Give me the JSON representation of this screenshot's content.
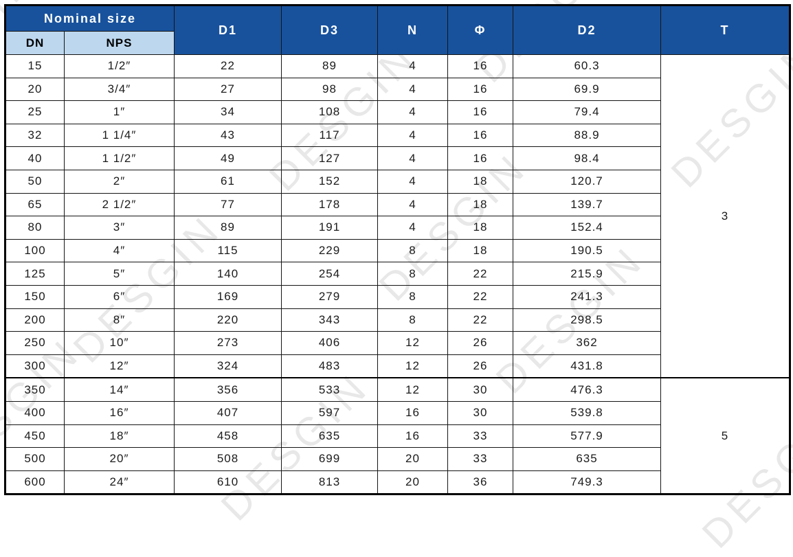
{
  "watermark": {
    "text": "DESGIN",
    "color": "#d9d9d9"
  },
  "table": {
    "header": {
      "nominal_size": "Nominal size",
      "dn": "DN",
      "nps": "NPS",
      "d1": "D1",
      "d3": "D3",
      "n": "N",
      "phi": "Φ",
      "d2": "D2",
      "t": "T"
    },
    "colors": {
      "header_bg": "#18529d",
      "header_fg": "#ffffff",
      "subheader_bg": "#bdd7ee",
      "subheader_fg": "#000000",
      "border": "#000000"
    },
    "rows": [
      {
        "dn": "15",
        "nps": "1/2″",
        "d1": "22",
        "d3": "89",
        "n": "4",
        "phi": "16",
        "d2": "60.3"
      },
      {
        "dn": "20",
        "nps": "3/4″",
        "d1": "27",
        "d3": "98",
        "n": "4",
        "phi": "16",
        "d2": "69.9"
      },
      {
        "dn": "25",
        "nps": "1″",
        "d1": "34",
        "d3": "108",
        "n": "4",
        "phi": "16",
        "d2": "79.4"
      },
      {
        "dn": "32",
        "nps": "1 1/4″",
        "d1": "43",
        "d3": "117",
        "n": "4",
        "phi": "16",
        "d2": "88.9"
      },
      {
        "dn": "40",
        "nps": "1 1/2″",
        "d1": "49",
        "d3": "127",
        "n": "4",
        "phi": "16",
        "d2": "98.4"
      },
      {
        "dn": "50",
        "nps": "2″",
        "d1": "61",
        "d3": "152",
        "n": "4",
        "phi": "18",
        "d2": "120.7"
      },
      {
        "dn": "65",
        "nps": "2 1/2″",
        "d1": "77",
        "d3": "178",
        "n": "4",
        "phi": "18",
        "d2": "139.7"
      },
      {
        "dn": "80",
        "nps": "3″",
        "d1": "89",
        "d3": "191",
        "n": "4",
        "phi": "18",
        "d2": "152.4"
      },
      {
        "dn": "100",
        "nps": "4″",
        "d1": "115",
        "d3": "229",
        "n": "8",
        "phi": "18",
        "d2": "190.5"
      },
      {
        "dn": "125",
        "nps": "5″",
        "d1": "140",
        "d3": "254",
        "n": "8",
        "phi": "22",
        "d2": "215.9"
      },
      {
        "dn": "150",
        "nps": "6″",
        "d1": "169",
        "d3": "279",
        "n": "8",
        "phi": "22",
        "d2": "241.3"
      },
      {
        "dn": "200",
        "nps": "8″",
        "d1": "220",
        "d3": "343",
        "n": "8",
        "phi": "22",
        "d2": "298.5"
      },
      {
        "dn": "250",
        "nps": "10″",
        "d1": "273",
        "d3": "406",
        "n": "12",
        "phi": "26",
        "d2": "362"
      },
      {
        "dn": "300",
        "nps": "12″",
        "d1": "324",
        "d3": "483",
        "n": "12",
        "phi": "26",
        "d2": "431.8"
      },
      {
        "dn": "350",
        "nps": "14″",
        "d1": "356",
        "d3": "533",
        "n": "12",
        "phi": "30",
        "d2": "476.3"
      },
      {
        "dn": "400",
        "nps": "16″",
        "d1": "407",
        "d3": "597",
        "n": "16",
        "phi": "30",
        "d2": "539.8"
      },
      {
        "dn": "450",
        "nps": "18″",
        "d1": "458",
        "d3": "635",
        "n": "16",
        "phi": "33",
        "d2": "577.9"
      },
      {
        "dn": "500",
        "nps": "20″",
        "d1": "508",
        "d3": "699",
        "n": "20",
        "phi": "33",
        "d2": "635"
      },
      {
        "dn": "600",
        "nps": "24″",
        "d1": "610",
        "d3": "813",
        "n": "20",
        "phi": "36",
        "d2": "749.3"
      }
    ],
    "t_groups": [
      {
        "value": "3",
        "row_span": 14
      },
      {
        "value": "5",
        "row_span": 5
      }
    ]
  }
}
